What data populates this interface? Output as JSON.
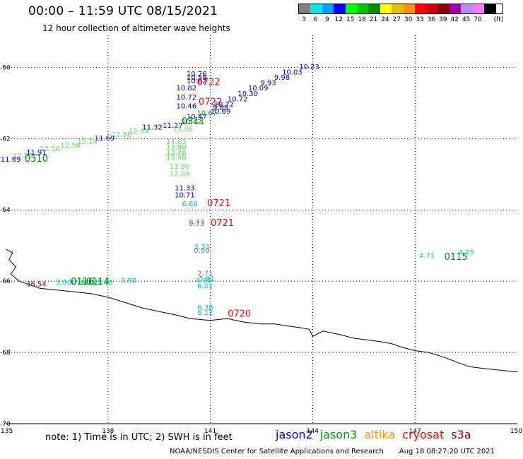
{
  "header": {
    "title": "00:00 – 11:59 UTC 08/15/2021",
    "subtitle": "12 hour collection of altimeter wave heights"
  },
  "legend": {
    "unit": "(ft)",
    "bins": [
      {
        "label": "3",
        "color": "#808080"
      },
      {
        "label": "6",
        "color": "#00e8e8"
      },
      {
        "label": "9",
        "color": "#00a0ff"
      },
      {
        "label": "12",
        "color": "#0000ff"
      },
      {
        "label": "15",
        "color": "#00ff00"
      },
      {
        "label": "18",
        "color": "#00c800"
      },
      {
        "label": "21",
        "color": "#008c00"
      },
      {
        "label": "24",
        "color": "#ffff00"
      },
      {
        "label": "27",
        "color": "#e6c000"
      },
      {
        "label": "30",
        "color": "#ff9000"
      },
      {
        "label": "33",
        "color": "#ff0000"
      },
      {
        "label": "36",
        "color": "#d00000"
      },
      {
        "label": "39",
        "color": "#8c0000"
      },
      {
        "label": "42",
        "color": "#a000a0"
      },
      {
        "label": "45",
        "color": "#b48cff"
      },
      {
        "label": "70",
        "color": "#ff78ff"
      },
      {
        "label": "",
        "color": "#000000"
      }
    ]
  },
  "axes": {
    "lon": {
      "min": 135,
      "max": 150,
      "ticks": [
        "135",
        "138",
        "141",
        "144",
        "147",
        "150"
      ],
      "values": [
        135,
        138,
        141,
        144,
        147,
        150
      ]
    },
    "lat": {
      "min": -70,
      "max": -59.1,
      "ticks": [
        "-60",
        "-62",
        "-64",
        "-66",
        "-68",
        "-70"
      ],
      "values": [
        -60,
        -62,
        -64,
        -66,
        -68,
        -70
      ]
    }
  },
  "observations": [
    {
      "lon": 140.6,
      "lat": -60.25,
      "text": "10.76",
      "color": "#0000c8"
    },
    {
      "lon": 140.6,
      "lat": -60.35,
      "text": "10.59",
      "color": "#0000c8"
    },
    {
      "lon": 140.6,
      "lat": -60.45,
      "text": "10.62",
      "color": "#0000c8"
    },
    {
      "lon": 140.3,
      "lat": -60.65,
      "text": "10.82",
      "color": "#0000c8"
    },
    {
      "lon": 140.3,
      "lat": -60.9,
      "text": "10.72",
      "color": "#0000c8"
    },
    {
      "lon": 140.3,
      "lat": -61.15,
      "text": "10.46",
      "color": "#0000c8"
    },
    {
      "lon": 141.3,
      "lat": -61.2,
      "text": "9.88",
      "color": "#0000c8"
    },
    {
      "lon": 141.3,
      "lat": -61.3,
      "text": "10.69",
      "color": "#0000c8"
    },
    {
      "lon": 140.9,
      "lat": -61.35,
      "text": "10.67",
      "color": "#00a000"
    },
    {
      "lon": 141.4,
      "lat": -61.1,
      "text": "10.72",
      "color": "#0000c8"
    },
    {
      "lon": 141.8,
      "lat": -60.95,
      "text": "10.72",
      "color": "#0000c8"
    },
    {
      "lon": 142.1,
      "lat": -60.8,
      "text": "10.30",
      "color": "#0000c8"
    },
    {
      "lon": 142.4,
      "lat": -60.65,
      "text": "10.09",
      "color": "#0000c8"
    },
    {
      "lon": 142.7,
      "lat": -60.5,
      "text": "9.93",
      "color": "#0000c8"
    },
    {
      "lon": 143.1,
      "lat": -60.35,
      "text": "9.98",
      "color": "#0000c8"
    },
    {
      "lon": 143.4,
      "lat": -60.2,
      "text": "10.03",
      "color": "#0000c8"
    },
    {
      "lon": 143.9,
      "lat": -60.05,
      "text": "10.23",
      "color": "#0000c8"
    },
    {
      "lon": 140.6,
      "lat": -61.45,
      "text": "10.47",
      "color": "#0000c8"
    },
    {
      "lon": 140.45,
      "lat": -61.6,
      "text": "10.42",
      "color": "#00a000"
    },
    {
      "lon": 139.9,
      "lat": -61.7,
      "text": "11.27",
      "color": "#0000c8"
    },
    {
      "lon": 139.3,
      "lat": -61.75,
      "text": "11.32",
      "color": "#0000c8"
    },
    {
      "lon": 140.2,
      "lat": -61.8,
      "text": "13.06",
      "color": "#60e060"
    },
    {
      "lon": 138.9,
      "lat": -61.85,
      "text": "12.44",
      "color": "#60e060"
    },
    {
      "lon": 138.4,
      "lat": -61.95,
      "text": "12.86",
      "color": "#60e060"
    },
    {
      "lon": 137.9,
      "lat": -62.05,
      "text": "11.69",
      "color": "#0000c8"
    },
    {
      "lon": 137.4,
      "lat": -62.15,
      "text": "12.14",
      "color": "#60e060"
    },
    {
      "lon": 136.9,
      "lat": -62.25,
      "text": "12.56",
      "color": "#60e060"
    },
    {
      "lon": 136.3,
      "lat": -62.35,
      "text": "12.56",
      "color": "#60e060"
    },
    {
      "lon": 135.9,
      "lat": -62.45,
      "text": "11.91",
      "color": "#0000c8"
    },
    {
      "lon": 135.5,
      "lat": -62.55,
      "text": "12.56",
      "color": "#60e060"
    },
    {
      "lon": 135.15,
      "lat": -62.65,
      "text": "11.69",
      "color": "#0000c8"
    },
    {
      "lon": 140.0,
      "lat": -62.15,
      "text": "14.63",
      "color": "#60e060"
    },
    {
      "lon": 140.0,
      "lat": -62.3,
      "text": "13.80",
      "color": "#60e060"
    },
    {
      "lon": 140.0,
      "lat": -62.45,
      "text": "13.78",
      "color": "#60e060"
    },
    {
      "lon": 140.0,
      "lat": -62.6,
      "text": "13.98",
      "color": "#60e060"
    },
    {
      "lon": 140.1,
      "lat": -62.85,
      "text": "13.90",
      "color": "#60e060"
    },
    {
      "lon": 140.1,
      "lat": -63.05,
      "text": "12.83",
      "color": "#60e060"
    },
    {
      "lon": 140.25,
      "lat": -63.45,
      "text": "11.33",
      "color": "#0000c8"
    },
    {
      "lon": 140.25,
      "lat": -63.65,
      "text": "10.71",
      "color": "#0000c8"
    },
    {
      "lon": 140.4,
      "lat": -63.9,
      "text": "6.68",
      "color": "#00c8c8"
    },
    {
      "lon": 140.6,
      "lat": -64.4,
      "text": "0.73",
      "color": "#808080"
    },
    {
      "lon": 140.6,
      "lat": -64.45,
      "text": "0.73",
      "color": "#808080"
    },
    {
      "lon": 140.75,
      "lat": -65.1,
      "text": "3.33",
      "color": "#00c8c8"
    },
    {
      "lon": 140.75,
      "lat": -65.2,
      "text": "0.90",
      "color": "#808080"
    },
    {
      "lon": 140.85,
      "lat": -65.85,
      "text": "2.71",
      "color": "#808080"
    },
    {
      "lon": 140.8,
      "lat": -66.05,
      "text": "4.36",
      "color": "#00c8c8"
    },
    {
      "lon": 140.9,
      "lat": -66.0,
      "text": "5.91",
      "color": "#00c8c8"
    },
    {
      "lon": 140.85,
      "lat": -66.2,
      "text": "6.01",
      "color": "#00c8c8"
    },
    {
      "lon": 140.85,
      "lat": -66.8,
      "text": "6.38",
      "color": "#00c8c8"
    },
    {
      "lon": 140.85,
      "lat": -66.95,
      "text": "6.12",
      "color": "#00c8c8"
    },
    {
      "lon": 135.9,
      "lat": -66.15,
      "text": "36.54",
      "color": "#8c0000"
    },
    {
      "lon": 136.7,
      "lat": -66.1,
      "text": "5.80",
      "color": "#00c8c8"
    },
    {
      "lon": 137.1,
      "lat": -66.1,
      "text": "4.76",
      "color": "#00c8c8"
    },
    {
      "lon": 137.5,
      "lat": -66.1,
      "text": "4.02",
      "color": "#00c8c8"
    },
    {
      "lon": 137.9,
      "lat": -66.1,
      "text": "3.40",
      "color": "#00c8c8"
    },
    {
      "lon": 138.6,
      "lat": -66.05,
      "text": "3.98",
      "color": "#00c8c8"
    },
    {
      "lon": 147.35,
      "lat": -65.35,
      "text": "4.71",
      "color": "#00c8c8"
    },
    {
      "lon": 148.5,
      "lat": -65.25,
      "text": "4.25",
      "color": "#00c8c8"
    }
  ],
  "time_labels": [
    {
      "lon": 140.95,
      "lat": -60.5,
      "text": "0722",
      "color": "#ff0000"
    },
    {
      "lon": 141.0,
      "lat": -61.05,
      "text": "0722",
      "color": "#ff0000"
    },
    {
      "lon": 140.5,
      "lat": -61.6,
      "text": "0311",
      "color": "#008c00"
    },
    {
      "lon": 135.9,
      "lat": -62.65,
      "text": "0310",
      "color": "#008c00"
    },
    {
      "lon": 141.25,
      "lat": -63.9,
      "text": "0721",
      "color": "#ff0000"
    },
    {
      "lon": 141.35,
      "lat": -64.45,
      "text": "0721",
      "color": "#ff0000"
    },
    {
      "lon": 141.85,
      "lat": -67.0,
      "text": "0720",
      "color": "#ff0000"
    },
    {
      "lon": 137.25,
      "lat": -66.1,
      "text": "0116",
      "color": "#008c00"
    },
    {
      "lon": 137.7,
      "lat": -66.1,
      "text": "0114",
      "color": "#008c00"
    },
    {
      "lon": 148.2,
      "lat": -65.4,
      "text": "0115",
      "color": "#008c00"
    }
  ],
  "coastline": [
    [
      135.0,
      -65.1
    ],
    [
      135.2,
      -65.2
    ],
    [
      135.1,
      -65.4
    ],
    [
      135.3,
      -65.6
    ],
    [
      135.15,
      -65.8
    ],
    [
      135.4,
      -66.0
    ],
    [
      136.0,
      -66.2
    ],
    [
      136.5,
      -66.25
    ],
    [
      137.0,
      -66.3
    ],
    [
      137.5,
      -66.35
    ],
    [
      138.0,
      -66.45
    ],
    [
      138.5,
      -66.6
    ],
    [
      139.0,
      -66.75
    ],
    [
      139.5,
      -66.85
    ],
    [
      140.0,
      -66.95
    ],
    [
      140.4,
      -67.05
    ],
    [
      141.0,
      -67.1
    ],
    [
      141.5,
      -67.05
    ],
    [
      142.0,
      -67.15
    ],
    [
      142.5,
      -67.2
    ],
    [
      142.9,
      -67.2
    ],
    [
      143.2,
      -67.25
    ],
    [
      143.6,
      -67.3
    ],
    [
      143.9,
      -67.35
    ],
    [
      144.0,
      -67.55
    ],
    [
      144.3,
      -67.4
    ],
    [
      144.8,
      -67.5
    ],
    [
      145.2,
      -67.6
    ],
    [
      145.6,
      -67.65
    ],
    [
      146.0,
      -67.7
    ],
    [
      146.3,
      -67.75
    ],
    [
      146.6,
      -67.85
    ],
    [
      147.0,
      -67.95
    ],
    [
      147.4,
      -68.0
    ],
    [
      147.9,
      -68.15
    ],
    [
      148.3,
      -68.3
    ],
    [
      148.6,
      -68.4
    ],
    [
      149.0,
      -68.45
    ],
    [
      149.5,
      -68.5
    ],
    [
      150.0,
      -68.55
    ]
  ],
  "footer": {
    "note": "note: 1) Time is in UTC; 2) SWH is in feet",
    "satellites": [
      {
        "name": "jason2",
        "color": "#0000c8"
      },
      {
        "name": "jason3",
        "color": "#00a000"
      },
      {
        "name": "altika",
        "color": "#ff9000"
      },
      {
        "name": "cryosat",
        "color": "#ff0000"
      },
      {
        "name": "s3a",
        "color": "#8c0000"
      }
    ],
    "credit": "NOAA/NESDIS Center for Satellite Applications and Research",
    "timestamp": "Aug 18 08:27:20 UTC 2021"
  }
}
